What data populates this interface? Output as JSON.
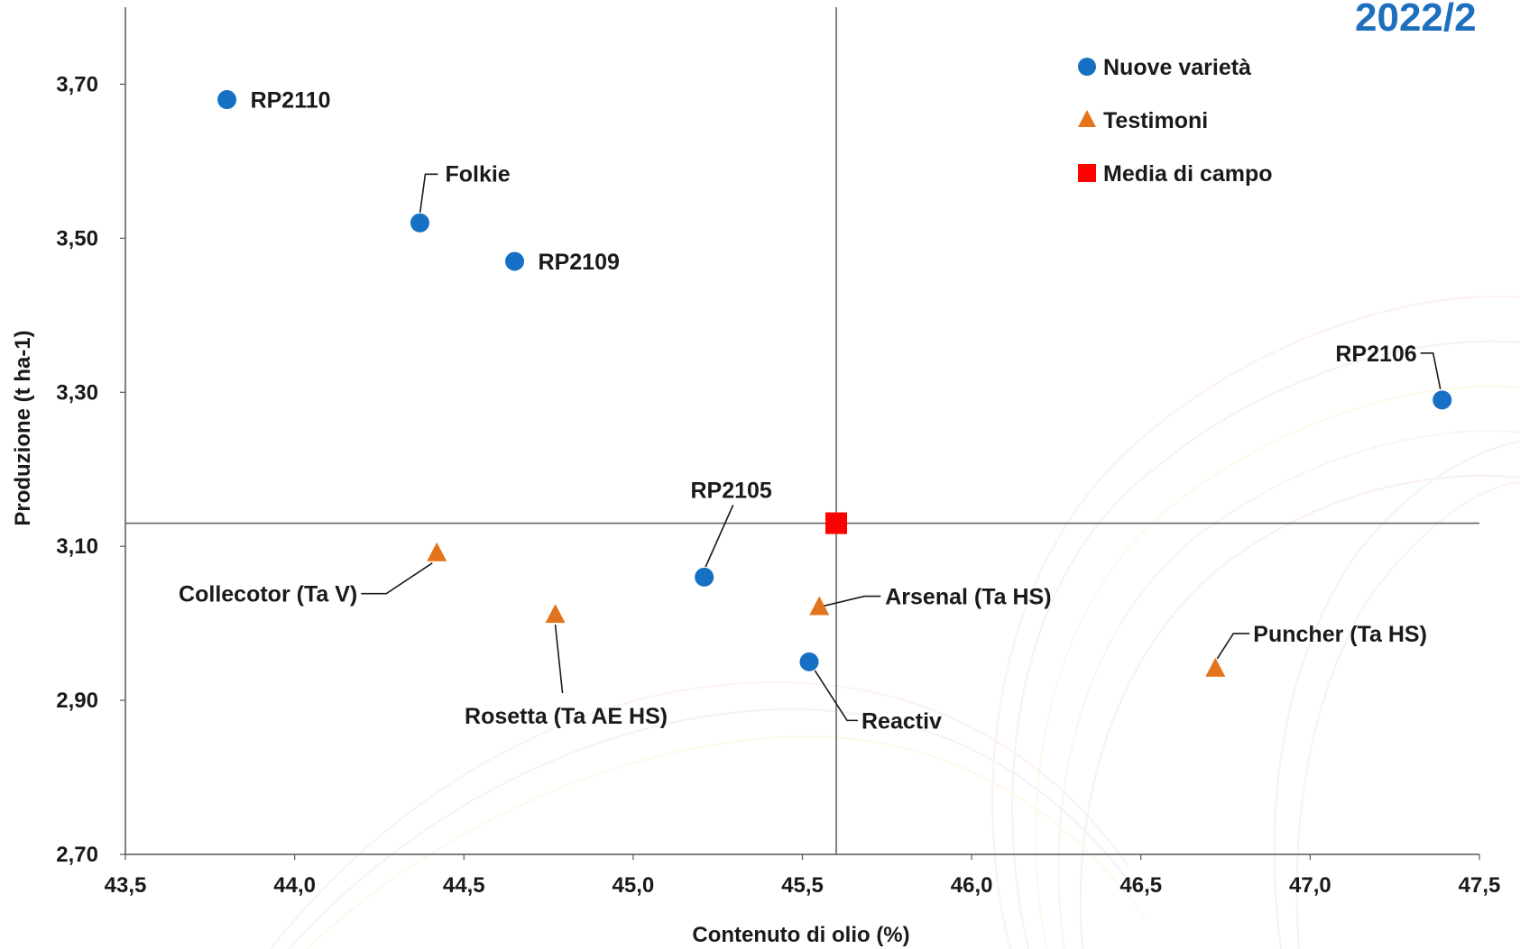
{
  "corner_title": "2022/2",
  "chart_data": {
    "type": "scatter",
    "xlabel": "Contenuto di olio (%)",
    "ylabel": "Produzione (t ha-1)",
    "xlim": [
      43.5,
      47.5
    ],
    "ylim": [
      2.7,
      3.8
    ],
    "x_ticks": [
      "43,5",
      "44,0",
      "44,5",
      "45,0",
      "45,5",
      "46,0",
      "46,5",
      "47,0",
      "47,5"
    ],
    "y_ticks": [
      "2,70",
      "2,90",
      "3,10",
      "3,30",
      "3,50",
      "3,70"
    ],
    "grid": false,
    "legend_position": "top-right",
    "legend": [
      {
        "name": "Nuove varietà",
        "marker": "circle",
        "color": "#1670c4"
      },
      {
        "name": "Testimoni",
        "marker": "triangle",
        "color": "#e2741d"
      },
      {
        "name": "Media di campo",
        "marker": "square",
        "color": "#ff0000"
      }
    ],
    "reference_lines": {
      "x": 45.6,
      "y": 3.13
    },
    "series": [
      {
        "name": "Nuove varietà",
        "marker": "circle",
        "color": "#1670c4",
        "points": [
          {
            "label": "RP2110",
            "x": 43.8,
            "y": 3.68
          },
          {
            "label": "Folkie",
            "x": 44.37,
            "y": 3.52
          },
          {
            "label": "RP2109",
            "x": 44.65,
            "y": 3.47
          },
          {
            "label": "RP2106",
            "x": 47.39,
            "y": 3.29
          },
          {
            "label": "RP2105",
            "x": 45.21,
            "y": 3.06
          },
          {
            "label": "Reactiv",
            "x": 45.52,
            "y": 2.95
          }
        ]
      },
      {
        "name": "Testimoni",
        "marker": "triangle",
        "color": "#e2741d",
        "points": [
          {
            "label": "Collecotor (Ta V)",
            "x": 44.42,
            "y": 3.09
          },
          {
            "label": "Rosetta (Ta AE HS)",
            "x": 44.77,
            "y": 3.01
          },
          {
            "label": "Arsenal (Ta HS)",
            "x": 45.55,
            "y": 3.02
          },
          {
            "label": "Puncher (Ta HS)",
            "x": 46.72,
            "y": 2.94
          }
        ]
      },
      {
        "name": "Media di campo",
        "marker": "square",
        "color": "#ff0000",
        "points": [
          {
            "label": "",
            "x": 45.6,
            "y": 3.13
          }
        ]
      }
    ]
  }
}
